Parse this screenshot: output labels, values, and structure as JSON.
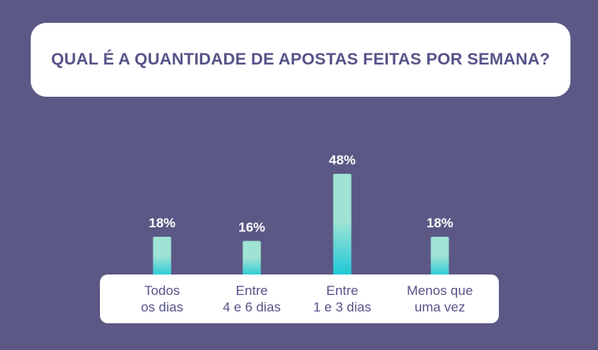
{
  "chart_data": {
    "type": "bar",
    "title": "QUAL É A QUANTIDADE DE APOSTAS FEITAS POR SEMANA?",
    "categories": [
      "Todos\nos dias",
      "Entre\n4 e 6 dias",
      "Entre\n1 e 3 dias",
      "Menos que\numa vez"
    ],
    "values": [
      18,
      16,
      48,
      18
    ],
    "value_labels": [
      "18%",
      "16%",
      "48%",
      "18%"
    ],
    "unit": "%",
    "ylim": [
      0,
      48
    ],
    "grid": false,
    "legend": "none"
  },
  "colors": {
    "background": "#5b5886",
    "card": "#ffffff",
    "text": "#56538a",
    "value_text": "#ffffff",
    "bar_top": "#9fe3d4",
    "bar_bottom": "#14c6d6"
  }
}
